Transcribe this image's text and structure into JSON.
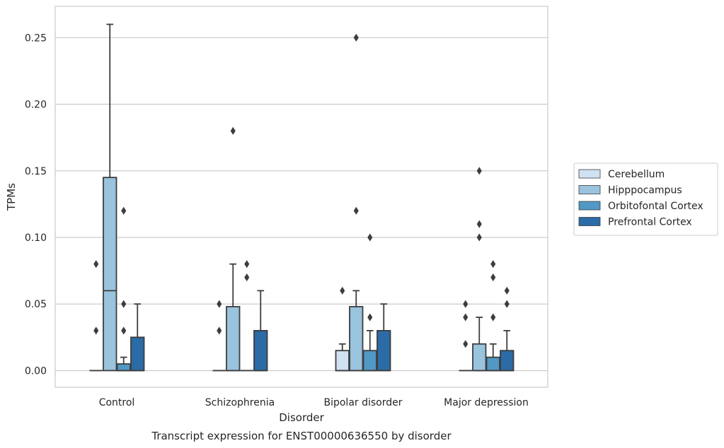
{
  "chart_data": {
    "type": "boxplot",
    "title": "",
    "caption": "Transcript expression for ENST00000636550 by disorder",
    "xlabel": "Disorder",
    "ylabel": "TPMs",
    "ylim": [
      -0.0125,
      0.2735
    ],
    "yticks": [
      0.0,
      0.05,
      0.1,
      0.15,
      0.2,
      0.25
    ],
    "ytick_labels": [
      "0.00",
      "0.05",
      "0.10",
      "0.15",
      "0.20",
      "0.25"
    ],
    "grid": "horizontal",
    "legend_position": "right",
    "categories": [
      "Control",
      "Schizophrenia",
      "Bipolar disorder",
      "Major depression"
    ],
    "series": [
      {
        "name": "Cerebellum",
        "color": "#d0e1f2",
        "boxes": [
          {
            "q1": 0.0,
            "median": 0.0,
            "q3": 0.0,
            "whisker_low": 0.0,
            "whisker_high": 0.0,
            "outliers": [
              0.03,
              0.08
            ]
          },
          {
            "q1": 0.0,
            "median": 0.0,
            "q3": 0.0,
            "whisker_low": 0.0,
            "whisker_high": 0.0,
            "outliers": [
              0.03,
              0.05
            ]
          },
          {
            "q1": 0.0,
            "median": 0.0,
            "q3": 0.015,
            "whisker_low": 0.0,
            "whisker_high": 0.02,
            "outliers": [
              0.06
            ]
          },
          {
            "q1": 0.0,
            "median": 0.0,
            "q3": 0.0,
            "whisker_low": 0.0,
            "whisker_high": 0.0,
            "outliers": [
              0.02,
              0.04,
              0.05
            ]
          }
        ]
      },
      {
        "name": "Hipppocampus",
        "color": "#9ac3dd",
        "boxes": [
          {
            "q1": 0.0,
            "median": 0.06,
            "q3": 0.145,
            "whisker_low": 0.0,
            "whisker_high": 0.26,
            "outliers": []
          },
          {
            "q1": 0.0,
            "median": 0.0,
            "q3": 0.048,
            "whisker_low": 0.0,
            "whisker_high": 0.08,
            "outliers": [
              0.18
            ]
          },
          {
            "q1": 0.0,
            "median": 0.0,
            "q3": 0.048,
            "whisker_low": 0.0,
            "whisker_high": 0.06,
            "outliers": [
              0.12,
              0.25
            ]
          },
          {
            "q1": 0.0,
            "median": 0.0,
            "q3": 0.02,
            "whisker_low": 0.0,
            "whisker_high": 0.04,
            "outliers": [
              0.1,
              0.11,
              0.15
            ]
          }
        ]
      },
      {
        "name": "Orbitofontal Cortex",
        "color": "#5198c5",
        "boxes": [
          {
            "q1": 0.0,
            "median": 0.0,
            "q3": 0.005,
            "whisker_low": 0.0,
            "whisker_high": 0.01,
            "outliers": [
              0.03,
              0.05,
              0.12
            ]
          },
          {
            "q1": 0.0,
            "median": 0.0,
            "q3": 0.0,
            "whisker_low": 0.0,
            "whisker_high": 0.0,
            "outliers": [
              0.07,
              0.08
            ]
          },
          {
            "q1": 0.0,
            "median": 0.0,
            "q3": 0.015,
            "whisker_low": 0.0,
            "whisker_high": 0.03,
            "outliers": [
              0.04,
              0.1
            ]
          },
          {
            "q1": 0.0,
            "median": 0.0,
            "q3": 0.01,
            "whisker_low": 0.0,
            "whisker_high": 0.02,
            "outliers": [
              0.04,
              0.07,
              0.08
            ]
          }
        ]
      },
      {
        "name": "Prefrontal Cortex",
        "color": "#2b6ba6",
        "boxes": [
          {
            "q1": 0.0,
            "median": 0.0,
            "q3": 0.025,
            "whisker_low": 0.0,
            "whisker_high": 0.05,
            "outliers": []
          },
          {
            "q1": 0.0,
            "median": 0.0,
            "q3": 0.03,
            "whisker_low": 0.0,
            "whisker_high": 0.06,
            "outliers": []
          },
          {
            "q1": 0.0,
            "median": 0.0,
            "q3": 0.03,
            "whisker_low": 0.0,
            "whisker_high": 0.05,
            "outliers": []
          },
          {
            "q1": 0.0,
            "median": 0.0,
            "q3": 0.015,
            "whisker_low": 0.0,
            "whisker_high": 0.03,
            "outliers": [
              0.05,
              0.06
            ]
          }
        ]
      }
    ]
  }
}
